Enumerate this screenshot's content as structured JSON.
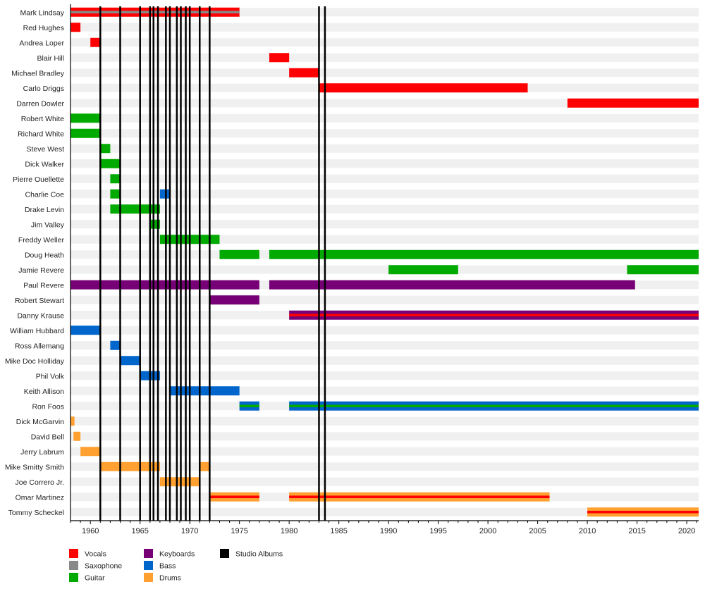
{
  "chart_data": {
    "type": "timeline",
    "title": "",
    "xlabel": "",
    "ylabel": "",
    "xlim": [
      1958,
      2021.2
    ],
    "x_ticks": [
      1960,
      1965,
      1970,
      1975,
      1980,
      1985,
      1990,
      1995,
      2000,
      2005,
      2010,
      2015,
      2020
    ],
    "colors": {
      "Vocals": "#ff0000",
      "Saxophone": "#888888",
      "Guitar": "#00aa00",
      "Keyboards": "#770077",
      "Bass": "#0066cc",
      "Drums": "#ffa030",
      "Studio Albums": "#000000",
      "row_band": "#f0f0f0"
    },
    "legend": [
      {
        "label": "Vocals",
        "role": "Vocals"
      },
      {
        "label": "Saxophone",
        "role": "Saxophone"
      },
      {
        "label": "Guitar",
        "role": "Guitar"
      },
      {
        "label": "Keyboards",
        "role": "Keyboards"
      },
      {
        "label": "Bass",
        "role": "Bass"
      },
      {
        "label": "Drums",
        "role": "Drums"
      },
      {
        "label": "Studio Albums",
        "role": "Studio Albums"
      }
    ],
    "studio_albums": [
      1961.0,
      1963.0,
      1965.0,
      1966.0,
      1966.35,
      1966.8,
      1967.6,
      1968.0,
      1968.7,
      1969.1,
      1969.6,
      1970.0,
      1971.0,
      1972.0,
      1983.0,
      1983.6
    ],
    "members": [
      {
        "name": "Mark Lindsay",
        "bars": [
          {
            "start": 1958,
            "end": 1975,
            "role": "Vocals",
            "secondary": "Saxophone"
          }
        ]
      },
      {
        "name": "Red Hughes",
        "bars": [
          {
            "start": 1958,
            "end": 1959,
            "role": "Vocals"
          }
        ]
      },
      {
        "name": "Andrea Loper",
        "bars": [
          {
            "start": 1960,
            "end": 1961,
            "role": "Vocals"
          }
        ]
      },
      {
        "name": "Blair Hill",
        "bars": [
          {
            "start": 1978,
            "end": 1980,
            "role": "Vocals"
          }
        ]
      },
      {
        "name": "Michael Bradley",
        "bars": [
          {
            "start": 1980,
            "end": 1983,
            "role": "Vocals"
          }
        ]
      },
      {
        "name": "Carlo Driggs",
        "bars": [
          {
            "start": 1983,
            "end": 2004,
            "role": "Vocals"
          }
        ]
      },
      {
        "name": "Darren Dowler",
        "bars": [
          {
            "start": 2008,
            "end": 2021.2,
            "role": "Vocals"
          }
        ]
      },
      {
        "name": "Robert White",
        "bars": [
          {
            "start": 1958,
            "end": 1961,
            "role": "Guitar"
          }
        ]
      },
      {
        "name": "Richard White",
        "bars": [
          {
            "start": 1958,
            "end": 1961,
            "role": "Guitar"
          }
        ]
      },
      {
        "name": "Steve West",
        "bars": [
          {
            "start": 1961,
            "end": 1962,
            "role": "Guitar"
          }
        ]
      },
      {
        "name": "Dick Walker",
        "bars": [
          {
            "start": 1961,
            "end": 1963,
            "role": "Guitar"
          }
        ]
      },
      {
        "name": "Pierre Ouellette",
        "bars": [
          {
            "start": 1962,
            "end": 1963,
            "role": "Guitar"
          }
        ]
      },
      {
        "name": "Charlie Coe",
        "bars": [
          {
            "start": 1962,
            "end": 1963,
            "role": "Guitar"
          },
          {
            "start": 1967,
            "end": 1968,
            "role": "Bass"
          }
        ]
      },
      {
        "name": "Drake Levin",
        "bars": [
          {
            "start": 1962,
            "end": 1967,
            "role": "Guitar"
          }
        ]
      },
      {
        "name": "Jim Valley",
        "bars": [
          {
            "start": 1966,
            "end": 1967,
            "role": "Guitar"
          }
        ]
      },
      {
        "name": "Freddy Weller",
        "bars": [
          {
            "start": 1967,
            "end": 1973,
            "role": "Guitar"
          }
        ]
      },
      {
        "name": "Doug Heath",
        "bars": [
          {
            "start": 1973,
            "end": 1977,
            "role": "Guitar"
          },
          {
            "start": 1978,
            "end": 2021.2,
            "role": "Guitar"
          }
        ]
      },
      {
        "name": "Jamie Revere",
        "bars": [
          {
            "start": 1990,
            "end": 1997,
            "role": "Guitar"
          },
          {
            "start": 2014,
            "end": 2021.2,
            "role": "Guitar"
          }
        ]
      },
      {
        "name": "Paul Revere",
        "bars": [
          {
            "start": 1958,
            "end": 1977,
            "role": "Keyboards"
          },
          {
            "start": 1978,
            "end": 2014.8,
            "role": "Keyboards"
          }
        ]
      },
      {
        "name": "Robert Stewart",
        "bars": [
          {
            "start": 1972,
            "end": 1977,
            "role": "Keyboards"
          }
        ]
      },
      {
        "name": "Danny Krause",
        "bars": [
          {
            "start": 1980,
            "end": 2021.2,
            "role": "Keyboards",
            "secondary": "Vocals"
          }
        ]
      },
      {
        "name": "William Hubbard",
        "bars": [
          {
            "start": 1958,
            "end": 1961,
            "role": "Bass"
          }
        ]
      },
      {
        "name": "Ross Allemang",
        "bars": [
          {
            "start": 1962,
            "end": 1963,
            "role": "Bass"
          }
        ]
      },
      {
        "name": "Mike Doc Holliday",
        "bars": [
          {
            "start": 1963,
            "end": 1965,
            "role": "Bass"
          }
        ]
      },
      {
        "name": "Phil Volk",
        "bars": [
          {
            "start": 1965,
            "end": 1967,
            "role": "Bass"
          }
        ]
      },
      {
        "name": "Keith Allison",
        "bars": [
          {
            "start": 1968,
            "end": 1975,
            "role": "Bass"
          }
        ]
      },
      {
        "name": "Ron Foos",
        "bars": [
          {
            "start": 1975,
            "end": 1977,
            "role": "Bass",
            "secondary": "Guitar"
          },
          {
            "start": 1980,
            "end": 2021.2,
            "role": "Bass",
            "secondary": "Guitar"
          }
        ]
      },
      {
        "name": "Dick McGarvin",
        "bars": [
          {
            "start": 1958,
            "end": 1958.4,
            "role": "Drums"
          }
        ]
      },
      {
        "name": "David Bell",
        "bars": [
          {
            "start": 1958.3,
            "end": 1959,
            "role": "Drums"
          }
        ]
      },
      {
        "name": "Jerry Labrum",
        "bars": [
          {
            "start": 1959,
            "end": 1961,
            "role": "Drums"
          }
        ]
      },
      {
        "name": "Mike Smitty Smith",
        "bars": [
          {
            "start": 1961,
            "end": 1967,
            "role": "Drums"
          },
          {
            "start": 1971,
            "end": 1972,
            "role": "Drums"
          }
        ]
      },
      {
        "name": "Joe Correro Jr.",
        "bars": [
          {
            "start": 1967,
            "end": 1971,
            "role": "Drums"
          }
        ]
      },
      {
        "name": "Omar Martinez",
        "bars": [
          {
            "start": 1972,
            "end": 1977,
            "role": "Drums",
            "secondary": "Vocals"
          },
          {
            "start": 1980,
            "end": 2006.2,
            "role": "Drums",
            "secondary": "Vocals"
          }
        ]
      },
      {
        "name": "Tommy Scheckel",
        "bars": [
          {
            "start": 2010,
            "end": 2021.2,
            "role": "Drums",
            "secondary": "Vocals"
          }
        ]
      }
    ]
  }
}
